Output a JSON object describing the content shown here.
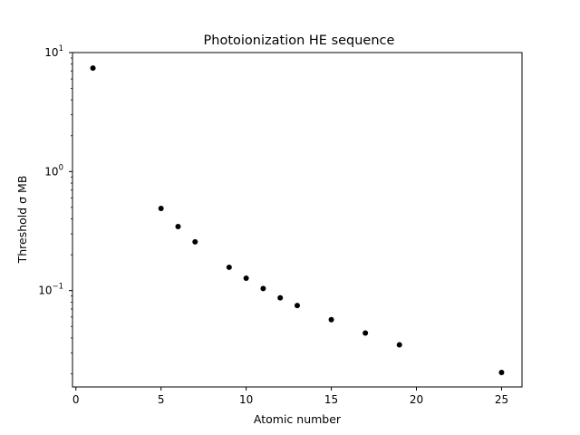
{
  "chart_data": {
    "type": "scatter",
    "title": "Photoionization HE sequence",
    "xlabel": "Atomic number",
    "ylabel": "Threshold σ MB",
    "yscale": "log",
    "xlim": [
      -0.2,
      26.2
    ],
    "ylim": [
      0.0155,
      10
    ],
    "xticks": [
      0,
      5,
      10,
      15,
      20,
      25
    ],
    "yticks": [
      {
        "value": 10,
        "base": "10",
        "exp": "1"
      },
      {
        "value": 1,
        "base": "10",
        "exp": "0"
      },
      {
        "value": 0.1,
        "base": "10",
        "exp": "−1"
      }
    ],
    "grid": false,
    "marker_color": "#000000",
    "points": [
      {
        "x": 1,
        "y": 7.4
      },
      {
        "x": 5,
        "y": 0.49
      },
      {
        "x": 6,
        "y": 0.345
      },
      {
        "x": 7,
        "y": 0.257
      },
      {
        "x": 9,
        "y": 0.157
      },
      {
        "x": 10,
        "y": 0.127
      },
      {
        "x": 11,
        "y": 0.104
      },
      {
        "x": 12,
        "y": 0.087
      },
      {
        "x": 13,
        "y": 0.075
      },
      {
        "x": 15,
        "y": 0.057
      },
      {
        "x": 17,
        "y": 0.044
      },
      {
        "x": 19,
        "y": 0.035
      },
      {
        "x": 25,
        "y": 0.0205
      }
    ]
  }
}
